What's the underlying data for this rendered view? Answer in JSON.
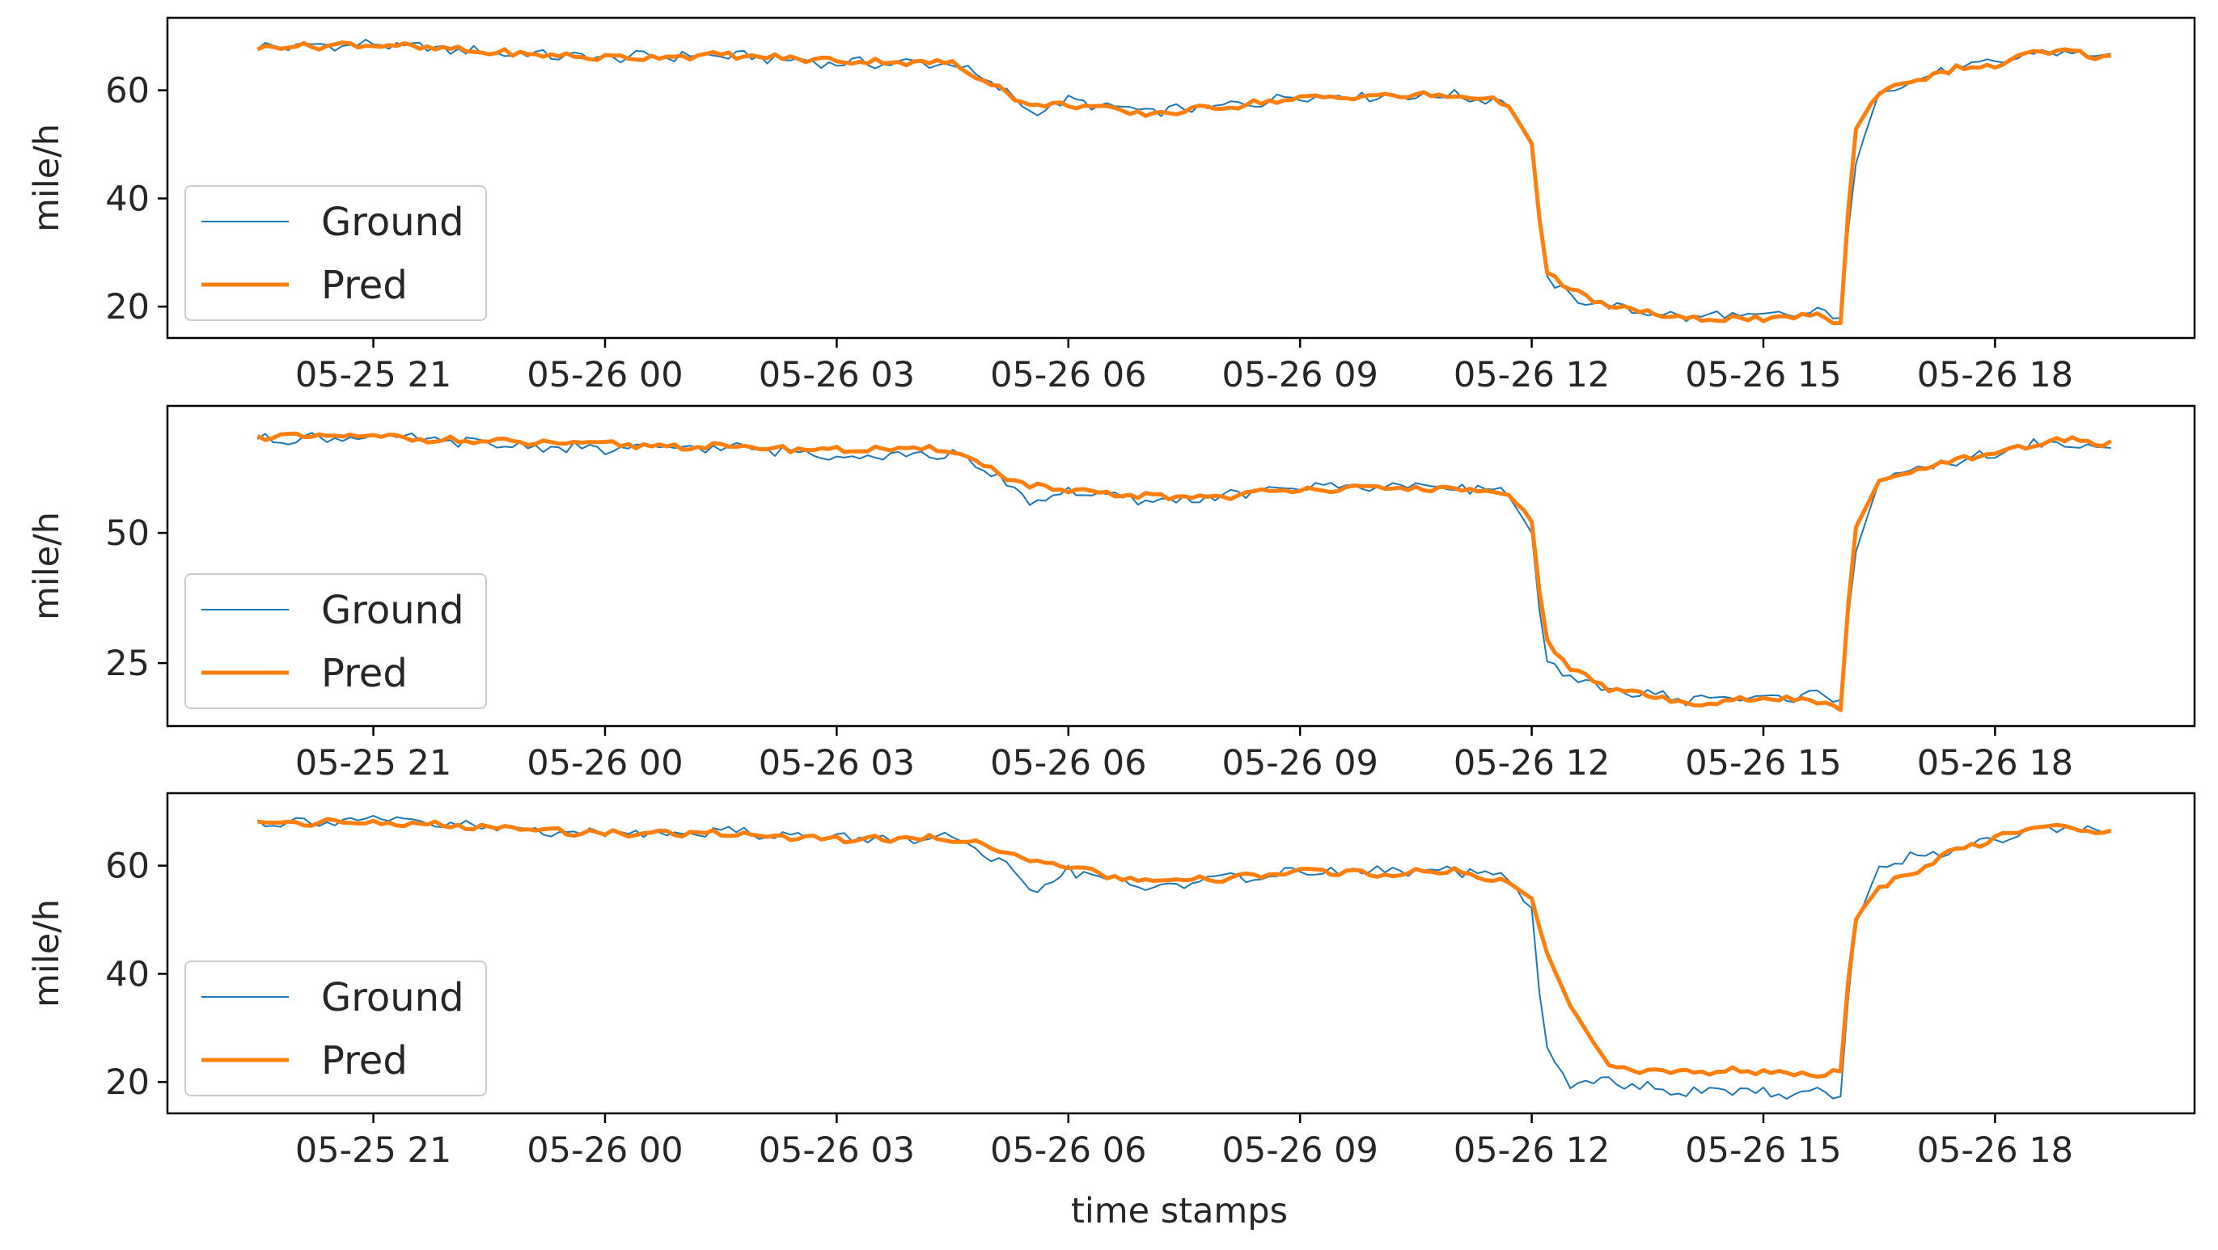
{
  "figure": {
    "xlabel": "time stamps"
  },
  "colors": {
    "ground": "#1f77b4",
    "pred": "#ff7f0e",
    "axes": "#000000"
  },
  "chart_data": [
    {
      "type": "line",
      "ylabel": "mile/h",
      "ylim": [
        14.2,
        73.4
      ],
      "yticks": [
        20,
        40,
        60
      ],
      "ytick_labels": [
        "20",
        "40",
        "60"
      ],
      "xlim": [
        "05-25 18:20",
        "05-26 20:35"
      ],
      "xticks": [
        "05-25 21",
        "05-26 00",
        "05-26 03",
        "05-26 06",
        "05-26 09",
        "05-26 12",
        "05-26 15",
        "05-26 18"
      ],
      "legend": {
        "location": "lower left",
        "entries": [
          "Ground",
          "Pred"
        ]
      },
      "grid": false,
      "x": [
        "05-25 19:30",
        "05-25 21:00",
        "05-25 22:30",
        "05-26 00:00",
        "05-26 01:30",
        "05-26 03:00",
        "05-26 04:30",
        "05-26 05:10",
        "05-26 05:30",
        "05-26 06:00",
        "05-26 07:00",
        "05-26 08:00",
        "05-26 09:00",
        "05-26 10:00",
        "05-26 11:00",
        "05-26 11:40",
        "05-26 12:00",
        "05-26 12:10",
        "05-26 12:30",
        "05-26 13:00",
        "05-26 13:30",
        "05-26 14:00",
        "05-26 14:30",
        "05-26 15:00",
        "05-26 15:40",
        "05-26 16:00",
        "05-26 16:10",
        "05-26 16:30",
        "05-26 17:00",
        "05-26 17:30",
        "05-26 18:00",
        "05-26 18:30",
        "05-26 19:00",
        "05-26 19:30"
      ],
      "series": [
        {
          "name": "Ground",
          "values": [
            68,
            68.5,
            67,
            66,
            66.5,
            65,
            65,
            60,
            56,
            58,
            56,
            57,
            59,
            59,
            59,
            58,
            50,
            25,
            22,
            20,
            19,
            18,
            18.5,
            18,
            19,
            18,
            45,
            60,
            62,
            64,
            65,
            67,
            67,
            66
          ]
        },
        {
          "name": "Pred",
          "values": [
            68,
            68.5,
            67,
            66,
            66.5,
            65.5,
            65,
            60,
            57,
            57.5,
            55.5,
            57,
            58.5,
            59,
            59,
            58,
            50,
            27,
            23,
            20,
            19,
            17.5,
            18,
            17.5,
            18.5,
            17,
            52,
            60,
            62,
            64,
            64.5,
            67,
            67,
            66
          ]
        }
      ]
    },
    {
      "type": "line",
      "ylabel": "mile/h",
      "ylim": [
        12.9,
        74.4
      ],
      "yticks": [
        25,
        50
      ],
      "ytick_labels": [
        "25",
        "50"
      ],
      "xlim": [
        "05-25 18:20",
        "05-26 20:35"
      ],
      "xticks": [
        "05-25 21",
        "05-26 00",
        "05-26 03",
        "05-26 06",
        "05-26 09",
        "05-26 12",
        "05-26 15",
        "05-26 18"
      ],
      "legend": {
        "location": "lower left",
        "entries": [
          "Ground",
          "Pred"
        ]
      },
      "grid": false,
      "x": [
        "05-25 19:30",
        "05-25 21:00",
        "05-25 22:30",
        "05-26 00:00",
        "05-26 01:30",
        "05-26 03:00",
        "05-26 04:30",
        "05-26 05:10",
        "05-26 05:30",
        "05-26 06:00",
        "05-26 07:00",
        "05-26 08:00",
        "05-26 09:00",
        "05-26 10:00",
        "05-26 11:00",
        "05-26 11:40",
        "05-26 12:00",
        "05-26 12:10",
        "05-26 12:30",
        "05-26 13:00",
        "05-26 13:30",
        "05-26 14:00",
        "05-26 14:30",
        "05-26 15:00",
        "05-26 15:40",
        "05-26 16:00",
        "05-26 16:10",
        "05-26 16:30",
        "05-26 17:00",
        "05-26 17:30",
        "05-26 18:00",
        "05-26 18:30",
        "05-26 19:00",
        "05-26 19:30"
      ],
      "series": [
        {
          "name": "Ground",
          "values": [
            68,
            68.5,
            67,
            66,
            66.5,
            65,
            65,
            60,
            56,
            58,
            56,
            57,
            59,
            59,
            59,
            58,
            50,
            25,
            22,
            20,
            19,
            18,
            18.5,
            18,
            19,
            18,
            45,
            60,
            62,
            64,
            65,
            67,
            67,
            66
          ]
        },
        {
          "name": "Pred",
          "values": [
            68.5,
            68.5,
            67.5,
            67,
            66.5,
            66,
            66,
            61,
            59,
            58,
            57,
            57,
            58.5,
            58.5,
            58.5,
            57.5,
            52,
            30,
            24,
            20,
            19,
            17,
            18,
            18,
            18,
            16,
            50,
            60,
            62,
            64,
            65,
            67,
            68,
            67
          ]
        }
      ]
    },
    {
      "type": "line",
      "ylabel": "mile/h",
      "ylim": [
        14.2,
        73.4
      ],
      "yticks": [
        20,
        40,
        60
      ],
      "ytick_labels": [
        "20",
        "40",
        "60"
      ],
      "xlim": [
        "05-25 18:20",
        "05-26 20:35"
      ],
      "xticks": [
        "05-25 21",
        "05-26 00",
        "05-26 03",
        "05-26 06",
        "05-26 09",
        "05-26 12",
        "05-26 15",
        "05-26 18"
      ],
      "legend": {
        "location": "lower left",
        "entries": [
          "Ground",
          "Pred"
        ]
      },
      "grid": false,
      "x": [
        "05-25 19:30",
        "05-25 21:00",
        "05-25 22:30",
        "05-26 00:00",
        "05-26 01:30",
        "05-26 03:00",
        "05-26 04:30",
        "05-26 05:10",
        "05-26 05:30",
        "05-26 06:00",
        "05-26 07:00",
        "05-26 08:00",
        "05-26 09:00",
        "05-26 10:00",
        "05-26 11:00",
        "05-26 11:40",
        "05-26 12:00",
        "05-26 12:10",
        "05-26 12:30",
        "05-26 13:00",
        "05-26 13:30",
        "05-26 14:00",
        "05-26 14:30",
        "05-26 15:00",
        "05-26 15:40",
        "05-26 16:00",
        "05-26 16:10",
        "05-26 16:30",
        "05-26 17:00",
        "05-26 17:30",
        "05-26 18:00",
        "05-26 18:30",
        "05-26 19:00",
        "05-26 19:30"
      ],
      "series": [
        {
          "name": "Ground",
          "values": [
            68,
            68.5,
            67,
            66,
            66.5,
            65,
            65,
            60,
            55,
            59,
            56,
            57.5,
            59,
            59,
            59,
            58,
            52,
            26,
            20,
            20,
            19,
            18,
            18.5,
            18,
            18,
            17.5,
            48,
            60,
            62,
            63,
            65,
            67,
            67,
            66
          ]
        },
        {
          "name": "Pred",
          "values": [
            68,
            68,
            67,
            66,
            66,
            65,
            65,
            63,
            61,
            59.5,
            57,
            57.5,
            59,
            58.5,
            59,
            57,
            54,
            45,
            34,
            23,
            22,
            22,
            22,
            22,
            21,
            22,
            50,
            56,
            59,
            63,
            65,
            67,
            67,
            66
          ]
        }
      ]
    }
  ]
}
